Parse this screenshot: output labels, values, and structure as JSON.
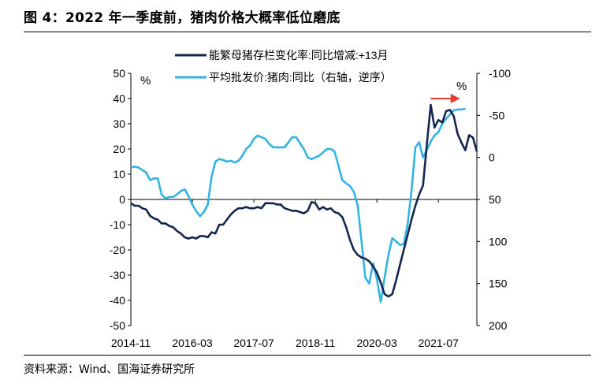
{
  "header": {
    "title": "图 4：2022 年一季度前，猪肉价格大概率低位磨底"
  },
  "footer": {
    "source": "资料来源：Wind、国海证券研究所"
  },
  "colors": {
    "sow": "#13264f",
    "pork": "#33b3e2",
    "arrow": "#e63b2e",
    "axis": "#000000"
  },
  "chart_data": {
    "type": "line",
    "x_ticks": [
      "2014-11",
      "2016-03",
      "2017-07",
      "2018-11",
      "2020-03",
      "2021-07"
    ],
    "left_axis": {
      "unit": "%",
      "min": -50,
      "max": 50,
      "ticks": [
        50,
        40,
        30,
        20,
        10,
        0,
        -10,
        -20,
        -30,
        -40,
        -50
      ]
    },
    "right_axis": {
      "unit": "%",
      "min": -100,
      "max": 200,
      "inverted": true,
      "ticks": [
        -100,
        -50,
        0,
        50,
        100,
        150,
        200
      ]
    },
    "legend_placement": "top",
    "arrow": "red arrow pointing right near the peak of both series",
    "series": [
      {
        "name": "能繁母猪存栏变化率:同比增减:+13月",
        "axis": "left",
        "color": "#13264f",
        "points": [
          [
            "2014-11",
            -1.5
          ],
          [
            "2014-12",
            -2.5
          ],
          [
            "2015-01",
            -2.5
          ],
          [
            "2015-02",
            -3.5
          ],
          [
            "2015-03",
            -4
          ],
          [
            "2015-04",
            -6.5
          ],
          [
            "2015-05",
            -7.5
          ],
          [
            "2015-06",
            -8
          ],
          [
            "2015-07",
            -9.5
          ],
          [
            "2015-08",
            -9.5
          ],
          [
            "2015-09",
            -10.5
          ],
          [
            "2015-10",
            -11
          ],
          [
            "2015-11",
            -12.5
          ],
          [
            "2015-12",
            -13.5
          ],
          [
            "2016-01",
            -15
          ],
          [
            "2016-02",
            -15.5
          ],
          [
            "2016-03",
            -15
          ],
          [
            "2016-04",
            -15.5
          ],
          [
            "2016-05",
            -14.5
          ],
          [
            "2016-06",
            -14.5
          ],
          [
            "2016-07",
            -15
          ],
          [
            "2016-08",
            -13
          ],
          [
            "2016-09",
            -13.5
          ],
          [
            "2016-10",
            -10
          ],
          [
            "2016-11",
            -10
          ],
          [
            "2016-12",
            -8
          ],
          [
            "2017-01",
            -6
          ],
          [
            "2017-02",
            -4.5
          ],
          [
            "2017-03",
            -3.5
          ],
          [
            "2017-04",
            -3.5
          ],
          [
            "2017-05",
            -3
          ],
          [
            "2017-06",
            -3.5
          ],
          [
            "2017-07",
            -3.5
          ],
          [
            "2017-08",
            -3
          ],
          [
            "2017-09",
            -3.5
          ],
          [
            "2017-10",
            -1.5
          ],
          [
            "2017-11",
            -1.5
          ],
          [
            "2017-12",
            -1.5
          ],
          [
            "2018-01",
            -2
          ],
          [
            "2018-02",
            -2
          ],
          [
            "2018-03",
            -3.5
          ],
          [
            "2018-04",
            -4
          ],
          [
            "2018-05",
            -4.5
          ],
          [
            "2018-06",
            -4.5
          ],
          [
            "2018-07",
            -5
          ],
          [
            "2018-08",
            -5.5
          ],
          [
            "2018-09",
            -4.5
          ],
          [
            "2018-10",
            -1
          ],
          [
            "2018-11",
            -1.5
          ],
          [
            "2018-12",
            -4
          ],
          [
            "2019-01",
            -3
          ],
          [
            "2019-02",
            -4
          ],
          [
            "2019-03",
            -3.5
          ],
          [
            "2019-04",
            -5
          ],
          [
            "2019-05",
            -5.5
          ],
          [
            "2019-06",
            -7
          ],
          [
            "2019-07",
            -11
          ],
          [
            "2019-08",
            -16
          ],
          [
            "2019-09",
            -20
          ],
          [
            "2019-10",
            -22
          ],
          [
            "2019-11",
            -23
          ],
          [
            "2019-12",
            -23.5
          ],
          [
            "2020-01",
            -24.5
          ],
          [
            "2020-02",
            -26.5
          ],
          [
            "2020-03",
            -29
          ],
          [
            "2020-04",
            -33
          ],
          [
            "2020-05",
            -37.5
          ],
          [
            "2020-06",
            -38.5
          ],
          [
            "2020-07",
            -37.5
          ],
          [
            "2020-08",
            -32
          ],
          [
            "2020-09",
            -26
          ],
          [
            "2020-10",
            -20
          ],
          [
            "2020-11",
            -14
          ],
          [
            "2020-12",
            -8
          ],
          [
            "2021-01",
            -2.5
          ],
          [
            "2021-02",
            2
          ],
          [
            "2021-03",
            5.5
          ],
          [
            "2021-04",
            22
          ],
          [
            "2021-05",
            37.5
          ],
          [
            "2021-06",
            28.5
          ],
          [
            "2021-07",
            31.5
          ],
          [
            "2021-08",
            30.5
          ],
          [
            "2021-09",
            35
          ],
          [
            "2021-10",
            35.5
          ],
          [
            "2021-11",
            33
          ],
          [
            "2021-12",
            26
          ],
          [
            "2022-01",
            22.5
          ],
          [
            "2022-02",
            19.5
          ],
          [
            "2022-03",
            25.5
          ],
          [
            "2022-04",
            24.5
          ],
          [
            "2022-05",
            19
          ]
        ]
      },
      {
        "name": "平均批发价:猪肉:同比（右轴，逆序）",
        "axis": "right",
        "color": "#33b3e2",
        "points": [
          [
            "2014-11",
            12
          ],
          [
            "2014-12",
            11
          ],
          [
            "2015-01",
            12
          ],
          [
            "2015-02",
            15
          ],
          [
            "2015-03",
            18
          ],
          [
            "2015-04",
            27
          ],
          [
            "2015-05",
            25
          ],
          [
            "2015-06",
            25
          ],
          [
            "2015-07",
            44
          ],
          [
            "2015-08",
            49
          ],
          [
            "2015-09",
            47
          ],
          [
            "2015-10",
            47
          ],
          [
            "2015-11",
            44
          ],
          [
            "2015-12",
            40
          ],
          [
            "2016-01",
            38
          ],
          [
            "2016-02",
            46
          ],
          [
            "2016-03",
            56
          ],
          [
            "2016-04",
            64
          ],
          [
            "2016-05",
            70
          ],
          [
            "2016-06",
            65
          ],
          [
            "2016-07",
            56
          ],
          [
            "2016-08",
            23
          ],
          [
            "2016-09",
            5
          ],
          [
            "2016-10",
            2
          ],
          [
            "2016-11",
            3
          ],
          [
            "2016-12",
            5
          ],
          [
            "2017-01",
            4
          ],
          [
            "2017-02",
            6
          ],
          [
            "2017-03",
            4
          ],
          [
            "2017-04",
            -2
          ],
          [
            "2017-05",
            -10
          ],
          [
            "2017-06",
            -14
          ],
          [
            "2017-07",
            -22
          ],
          [
            "2017-08",
            -26
          ],
          [
            "2017-09",
            -24
          ],
          [
            "2017-10",
            -22
          ],
          [
            "2017-11",
            -16
          ],
          [
            "2017-12",
            -12
          ],
          [
            "2018-01",
            -12
          ],
          [
            "2018-02",
            -12
          ],
          [
            "2018-03",
            -12
          ],
          [
            "2018-04",
            -18
          ],
          [
            "2018-05",
            -24
          ],
          [
            "2018-06",
            -24
          ],
          [
            "2018-07",
            -17
          ],
          [
            "2018-08",
            -10
          ],
          [
            "2018-09",
            0
          ],
          [
            "2018-10",
            2
          ],
          [
            "2018-11",
            0
          ],
          [
            "2018-12",
            -2
          ],
          [
            "2019-01",
            -6
          ],
          [
            "2019-02",
            -10
          ],
          [
            "2019-03",
            -10
          ],
          [
            "2019-04",
            -7
          ],
          [
            "2019-05",
            10
          ],
          [
            "2019-06",
            27
          ],
          [
            "2019-07",
            31
          ],
          [
            "2019-08",
            34
          ],
          [
            "2019-09",
            41
          ],
          [
            "2019-10",
            57
          ],
          [
            "2019-11",
            100
          ],
          [
            "2019-12",
            143
          ],
          [
            "2020-01",
            150
          ],
          [
            "2020-02",
            126
          ],
          [
            "2020-03",
            145
          ],
          [
            "2020-04",
            172
          ],
          [
            "2020-05",
            143
          ],
          [
            "2020-06",
            116
          ],
          [
            "2020-07",
            96
          ],
          [
            "2020-08",
            100
          ],
          [
            "2020-09",
            104
          ],
          [
            "2020-10",
            103
          ],
          [
            "2020-11",
            79
          ],
          [
            "2020-12",
            40
          ],
          [
            "2021-01",
            -12
          ],
          [
            "2021-02",
            -18
          ],
          [
            "2021-03",
            0
          ],
          [
            "2021-04",
            -9
          ],
          [
            "2021-05",
            -19
          ],
          [
            "2021-06",
            -26
          ],
          [
            "2021-07",
            -30
          ],
          [
            "2021-08",
            -40
          ],
          [
            "2021-09",
            -46
          ],
          [
            "2021-10",
            -51
          ],
          [
            "2021-11",
            -56
          ],
          [
            "2021-12",
            -57
          ],
          [
            "2022-01",
            -57
          ],
          [
            "2022-02",
            -58
          ]
        ]
      }
    ]
  }
}
